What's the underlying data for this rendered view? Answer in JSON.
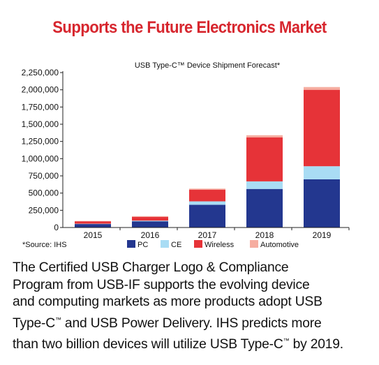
{
  "headline": "Supports the Future Electronics Market",
  "source_note": "*Source: IHS",
  "chart_data": {
    "type": "bar",
    "stacked": true,
    "title": "USB Type-C™ Device Shipment Forecast*",
    "categories": [
      "2015",
      "2016",
      "2017",
      "2018",
      "2019"
    ],
    "ylim": [
      0,
      2250000
    ],
    "yticks": [
      0,
      250000,
      500000,
      750000,
      1000000,
      1250000,
      1500000,
      1750000,
      2000000,
      2250000
    ],
    "ytick_labels": [
      "0",
      "250,000",
      "500,000",
      "750,000",
      "1,000,000",
      "1,250,000",
      "1,500,000",
      "1,750,000",
      "2,000,000",
      "2,250,000"
    ],
    "grid": false,
    "legend_placement": "bottom",
    "series": [
      {
        "name": "PC",
        "color": "#23378f",
        "values": [
          50000,
          90000,
          330000,
          560000,
          700000
        ]
      },
      {
        "name": "CE",
        "color": "#a9dcf4",
        "values": [
          5000,
          10000,
          50000,
          110000,
          190000
        ]
      },
      {
        "name": "Wireless",
        "color": "#e63338",
        "values": [
          35000,
          55000,
          170000,
          640000,
          1110000
        ]
      },
      {
        "name": "Automotive",
        "color": "#f6ada0",
        "values": [
          5000,
          10000,
          15000,
          30000,
          40000
        ]
      }
    ]
  },
  "body": {
    "line1": "The Certified USB Charger Logo & Compliance",
    "line2": "Program from USB-IF supports the evolving device",
    "line3": "and computing markets as more products adopt USB",
    "line4a": "Type-C",
    "tm": "™",
    "line4b": " and USB Power Delivery. IHS predicts more",
    "line5a": "than two billion devices will utilize USB Type-C",
    "line5b": " by 2019."
  }
}
